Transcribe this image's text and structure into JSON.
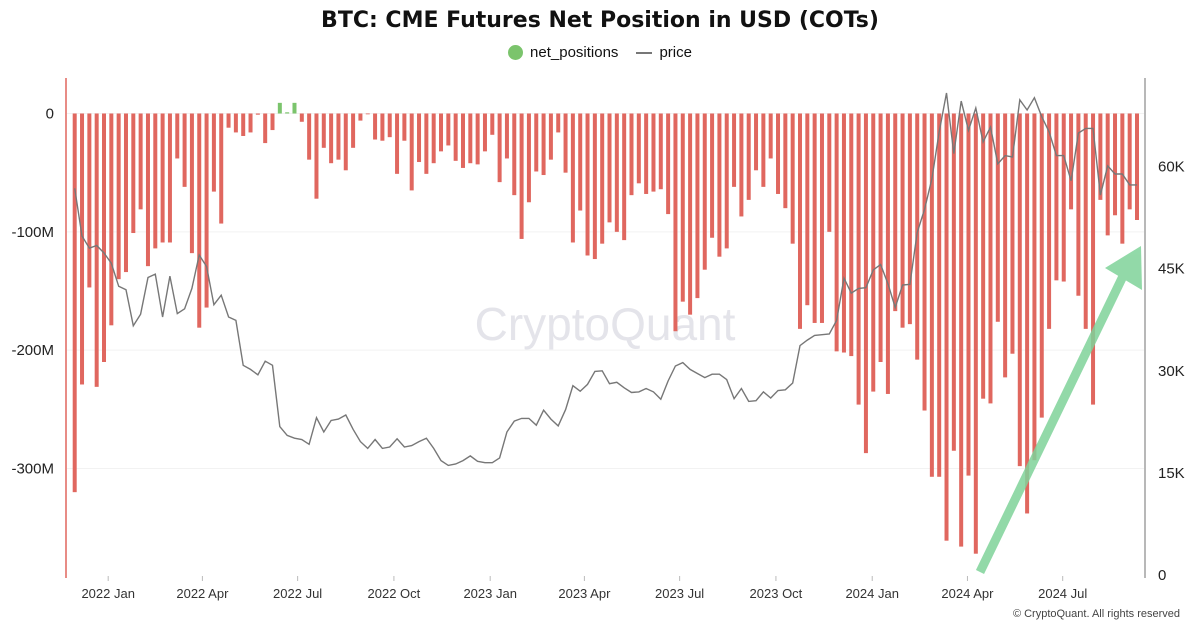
{
  "chart_data": {
    "type": "bar+line",
    "title": "BTC: CME Futures Net Position in USD (COTs)",
    "legend": {
      "placement": "top-center",
      "entries": [
        {
          "name": "net_positions",
          "color": "#7bc46c",
          "marker": "circle"
        },
        {
          "name": "price",
          "color": "#777777",
          "marker": "line"
        }
      ]
    },
    "x": {
      "start": "2021-11-30",
      "frequency": "weekly",
      "tick_labels": [
        {
          "date": "2022-01-01",
          "label": "2022 Jan"
        },
        {
          "date": "2022-04-01",
          "label": "2022 Apr"
        },
        {
          "date": "2022-07-01",
          "label": "2022 Jul"
        },
        {
          "date": "2022-10-01",
          "label": "2022 Oct"
        },
        {
          "date": "2023-01-01",
          "label": "2023 Jan"
        },
        {
          "date": "2023-04-01",
          "label": "2023 Apr"
        },
        {
          "date": "2023-07-01",
          "label": "2023 Jul"
        },
        {
          "date": "2023-10-01",
          "label": "2023 Oct"
        },
        {
          "date": "2024-01-01",
          "label": "2024 Jan"
        },
        {
          "date": "2024-04-01",
          "label": "2024 Apr"
        },
        {
          "date": "2024-07-01",
          "label": "2024 Jul"
        }
      ]
    },
    "y_left": {
      "unit": "USD",
      "ylim": [
        -390000000,
        30000000
      ],
      "ticks": [
        {
          "value": 0,
          "label": "0"
        },
        {
          "value": -100000000,
          "label": "-100M"
        },
        {
          "value": -200000000,
          "label": "-200M"
        },
        {
          "value": -300000000,
          "label": "-300M"
        }
      ]
    },
    "y_right": {
      "unit": "USD",
      "ylim": [
        0,
        73000
      ],
      "ticks": [
        {
          "value": 0,
          "label": "0"
        },
        {
          "value": 15000,
          "label": "15K"
        },
        {
          "value": 30000,
          "label": "30K"
        },
        {
          "value": 45000,
          "label": "45K"
        },
        {
          "value": 60000,
          "label": "60K"
        }
      ]
    },
    "grid": true,
    "colors": {
      "negative": "#e0675f",
      "positive": "#7bc46c",
      "price": "#777777",
      "left_axis": "#e0675f",
      "right_axis": "#888888",
      "annotation_arrow": "#7fd39a"
    },
    "series": [
      {
        "name": "net_positions",
        "type": "bar",
        "unit": "million USD",
        "axis": "left",
        "values": [
          -320,
          -229,
          -147,
          -231,
          -210,
          -179,
          -140,
          -134,
          -101,
          -81,
          -129,
          -114,
          -109,
          -109,
          -38,
          -62,
          -118,
          -181,
          -164,
          -66,
          -93,
          -12,
          -16,
          -19,
          -16,
          -1,
          -25,
          -14,
          9,
          1,
          9,
          -7,
          -39,
          -72,
          -29,
          -42,
          -39,
          -48,
          -29,
          -6,
          -0.5,
          -22,
          -23,
          -20,
          -51,
          -23,
          -65,
          -41,
          -51,
          -42,
          -32,
          -27,
          -40,
          -46,
          -42,
          -43,
          -32,
          -18,
          -58,
          -38,
          -69,
          -106,
          -75,
          -49,
          -52,
          -39,
          -16,
          -50,
          -109,
          -82,
          -120,
          -123,
          -110,
          -92,
          -100,
          -107,
          -69,
          -59,
          -68,
          -66,
          -64,
          -85,
          -184,
          -159,
          -170,
          -156,
          -132,
          -105,
          -121,
          -114,
          -62,
          -87,
          -73,
          -48,
          -62,
          -38,
          -68,
          -80,
          -110,
          -182,
          -162,
          -177,
          -177,
          -100,
          -201,
          -202,
          -205,
          -246,
          -287,
          -235,
          -210,
          -237,
          -167,
          -181,
          -178,
          -208,
          -251,
          -307,
          -307,
          -361,
          -285,
          -366,
          -306,
          -372,
          -241,
          -245,
          -176,
          -223,
          -203,
          -298,
          -338,
          -293,
          -257,
          -182,
          -141,
          -142,
          -81,
          -154,
          -182,
          -246,
          -73,
          -103,
          -86,
          -110,
          -81,
          -90
        ]
      },
      {
        "name": "price",
        "type": "line",
        "unit": "thousand USD",
        "axis": "right",
        "values": [
          56.8,
          49.8,
          48.0,
          48.4,
          47.3,
          45.8,
          42.4,
          41.9,
          36.6,
          38.3,
          43.7,
          44.2,
          37.9,
          43.9,
          38.4,
          39.1,
          42.1,
          47.0,
          45.3,
          39.7,
          41.1,
          37.9,
          37.4,
          30.8,
          30.2,
          29.4,
          31.4,
          30.8,
          21.8,
          20.5,
          20.1,
          19.9,
          19.2,
          23.1,
          21.0,
          22.7,
          22.9,
          23.5,
          21.4,
          19.6,
          18.6,
          19.9,
          18.6,
          18.8,
          20.0,
          18.8,
          19.0,
          19.6,
          20.1,
          18.6,
          16.8,
          16.1,
          16.3,
          16.8,
          17.5,
          16.7,
          16.5,
          16.5,
          17.2,
          21.0,
          22.6,
          23.0,
          23.0,
          22.0,
          24.2,
          22.9,
          21.9,
          24.3,
          27.8,
          27.0,
          28.0,
          29.9,
          30.0,
          28.1,
          28.3,
          27.5,
          26.8,
          26.9,
          27.4,
          26.9,
          25.8,
          28.5,
          30.7,
          31.2,
          30.2,
          29.6,
          29.0,
          29.5,
          29.5,
          28.7,
          25.9,
          27.4,
          25.5,
          25.6,
          26.9,
          26.0,
          27.1,
          27.2,
          28.2,
          33.7,
          34.5,
          35.2,
          35.3,
          35.4,
          37.4,
          43.6,
          41.4,
          42.1,
          42.2,
          44.8,
          45.6,
          42.8,
          39.3,
          42.6,
          42.7,
          50.3,
          53.7,
          58.2,
          65.1,
          70.8,
          61.9,
          69.6,
          65.3,
          68.6,
          63.6,
          65.8,
          60.4,
          61.6,
          61.4,
          69.8,
          68.3,
          70.1,
          67.3,
          65.1,
          61.6,
          61.6,
          57.9,
          64.9,
          65.6,
          65.6,
          55.8,
          60.1,
          58.9,
          58.9,
          57.3,
          57.3
        ]
      }
    ]
  },
  "watermark": "CryptoQuant",
  "footer": "© CryptoQuant. All rights reserved"
}
